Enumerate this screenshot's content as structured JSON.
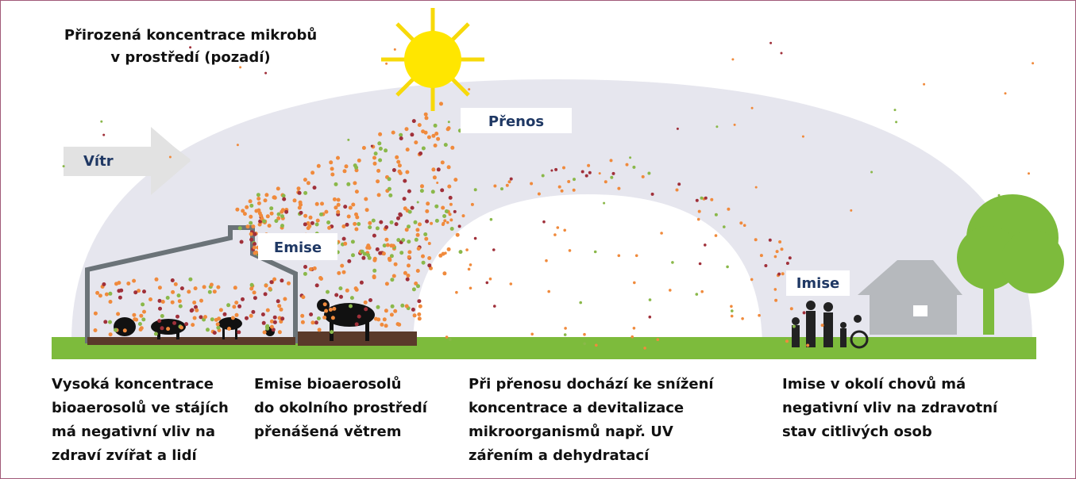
{
  "title_lines": [
    "Přirozená koncentrace mikrobů",
    "v prostředí (pozadí)"
  ],
  "labels": {
    "wind": "Vítr",
    "transfer": "Přenos",
    "emission": "Emise",
    "immission": "Imise"
  },
  "captions": [
    {
      "lines": [
        "Vysoká koncentrace",
        "bioaerosolů ve stájích",
        "má negativní vliv na",
        "zdraví zvířat a lidí"
      ]
    },
    {
      "lines": [
        "Emise bioaerosolů",
        "do okolního prostředí",
        "přenášená větrem"
      ]
    },
    {
      "lines": [
        "Při přenosu dochází ke snížení",
        "koncentrace a devitalizace",
        "mikroorganismů např. UV",
        "zářením a dehydratací"
      ]
    },
    {
      "lines": [
        "Imise v okolí chovů má",
        "negativní vliv na zdravotní",
        "stav citlivých osob"
      ]
    }
  ]
}
